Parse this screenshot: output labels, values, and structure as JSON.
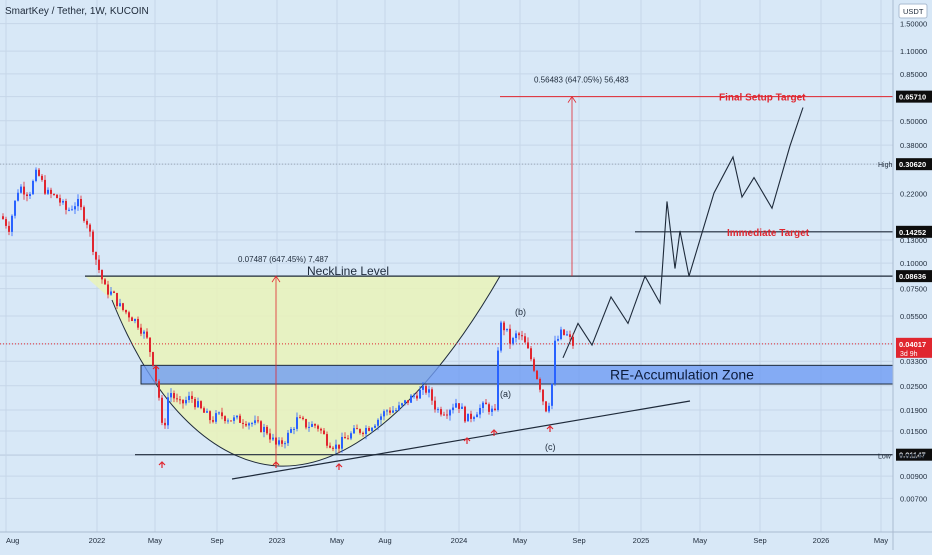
{
  "header": {
    "title": "SmartKey / Tether, 1W, KUCOIN",
    "currency_badge": "USDT"
  },
  "colors": {
    "background": "#d8e8f7",
    "candle_up": "#2962ff",
    "candle_down": "#e0262f",
    "target_text": "#e0262f",
    "cup_fill": "#eaf3b8",
    "zone_fill": "#6f9bf2"
  },
  "chart_data": {
    "type": "candlestick",
    "y_scale": "log",
    "ylim": [
      0.0058,
      1.75
    ],
    "x_tick_labels": [
      "Aug",
      "2022",
      "May",
      "Sep",
      "2023",
      "May",
      "Aug",
      "2024",
      "May",
      "Sep",
      "2025",
      "May",
      "Sep",
      "2026",
      "May"
    ],
    "y_tick_labels": [
      "1.50000",
      "1.10000",
      "0.85000",
      "0.65710",
      "0.50000",
      "0.38000",
      "0.30620",
      "0.22000",
      "0.14252",
      "0.13000",
      "0.10000",
      "0.08636",
      "0.07500",
      "0.05500",
      "0.04017",
      "0.03300",
      "0.02500",
      "0.01900",
      "0.01500",
      "0.01147",
      "0.01137",
      "0.00900",
      "0.00700"
    ],
    "price_badges": [
      {
        "label": "",
        "value": "0.65710"
      },
      {
        "label": "High",
        "value": "0.30620"
      },
      {
        "label": "",
        "value": "0.14252"
      },
      {
        "label": "",
        "value": "0.08636"
      },
      {
        "label": "",
        "value": "0.04017",
        "sub": "3d 9h"
      },
      {
        "label": "",
        "value": "0.01147"
      },
      {
        "label": "Low",
        "value": "0.01137"
      }
    ],
    "series": [
      {
        "name": "SmartKey / Tether",
        "close_last": 0.04017
      }
    ],
    "annotations": {
      "neckline_label": "NeckLine Level",
      "neckline_price": 0.08636,
      "neckline_measure": "0.07487 (647.45%) 7,487",
      "target_measure": "0.56483 (647.05%) 56,483",
      "final_target_label": "Final Setup Target",
      "final_target_price": 0.6571,
      "immediate_target_label": "Immediate Target",
      "immediate_target_price": 0.14252,
      "zone_label": "RE-Accumulation Zone",
      "zone_range": [
        0.0255,
        0.0315
      ],
      "support_price": 0.01147,
      "wave_labels": [
        "(a)",
        "(b)",
        "(c)"
      ]
    },
    "projection_path": [
      0.0343,
      0.0506,
      0.0396,
      0.0683,
      0.0506,
      0.0863,
      0.0637,
      0.201,
      0.0941,
      0.144,
      0.0863,
      0.221,
      0.332,
      0.211,
      0.263,
      0.186,
      0.377,
      0.581
    ]
  }
}
